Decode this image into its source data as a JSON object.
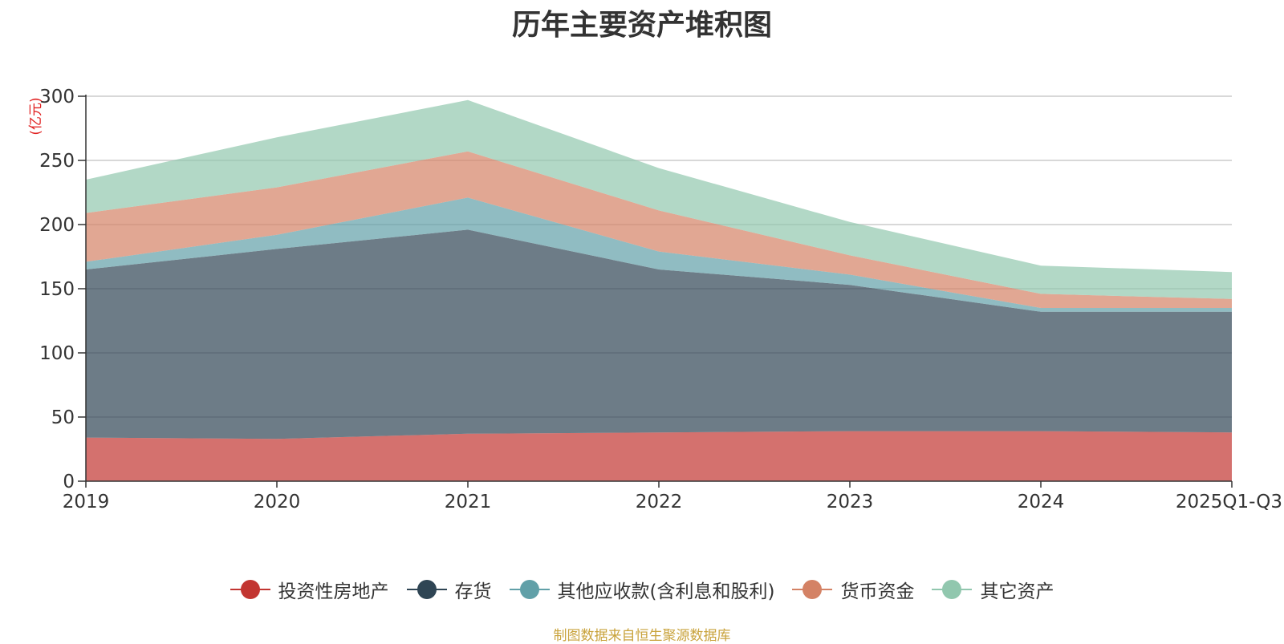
{
  "chart_data": {
    "type": "area",
    "stacked": true,
    "title": "历年主要资产堆积图",
    "ylabel": "(亿元)",
    "xlabel": "",
    "categories": [
      "2019",
      "2020",
      "2021",
      "2022",
      "2023",
      "2024",
      "2025Q1-Q3"
    ],
    "y_ticks": [
      "0",
      "50",
      "100",
      "150",
      "200",
      "250",
      "300"
    ],
    "ylim": [
      0,
      300
    ],
    "grid": true,
    "legend_position": "bottom-center",
    "series": [
      {
        "name": "投资性房地产",
        "color": "#c23531",
        "values": [
          34,
          33,
          37,
          38,
          39,
          39,
          38
        ]
      },
      {
        "name": "存货",
        "color": "#2f4554",
        "values": [
          131,
          148,
          159,
          127,
          114,
          93,
          94
        ]
      },
      {
        "name": "其他应收款(含利息和股利)",
        "color": "#61a0a8",
        "values": [
          6,
          11,
          25,
          14,
          8,
          3,
          3
        ]
      },
      {
        "name": "货币资金",
        "color": "#d48265",
        "values": [
          38,
          37,
          36,
          32,
          15,
          11,
          7
        ]
      },
      {
        "name": "其它资产",
        "color": "#91c7ae",
        "values": [
          26,
          39,
          40,
          33,
          26,
          22,
          21
        ]
      }
    ],
    "source_note": "制图数据来自恒生聚源数据库"
  }
}
